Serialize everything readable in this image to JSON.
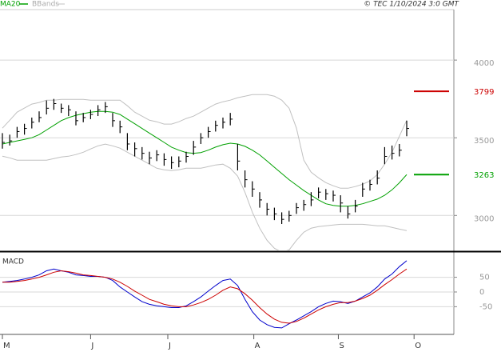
{
  "chart_data": [
    {
      "type": "ohlc",
      "credit": "© TEC 1/10/2024 3:0 GMT",
      "color": "#000000",
      "ylim": [
        2775,
        4325
      ],
      "yticks": [
        3000,
        3500,
        4000
      ],
      "grid": true,
      "high": [
        3530,
        3520,
        3570,
        3590,
        3630,
        3670,
        3740,
        3750,
        3720,
        3710,
        3670,
        3660,
        3680,
        3710,
        3730,
        3660,
        3610,
        3530,
        3470,
        3440,
        3410,
        3420,
        3400,
        3380,
        3380,
        3410,
        3480,
        3530,
        3570,
        3610,
        3630,
        3660,
        3460,
        3290,
        3220,
        3150,
        3080,
        3050,
        3020,
        3030,
        3080,
        3100,
        3150,
        3180,
        3170,
        3160,
        3130,
        3060,
        3100,
        3210,
        3230,
        3290,
        3440,
        3450,
        3460,
        3610
      ],
      "low": [
        3430,
        3450,
        3500,
        3520,
        3560,
        3600,
        3650,
        3680,
        3660,
        3640,
        3580,
        3600,
        3620,
        3640,
        3660,
        3570,
        3530,
        3420,
        3380,
        3360,
        3330,
        3350,
        3320,
        3300,
        3310,
        3340,
        3390,
        3460,
        3500,
        3540,
        3560,
        3580,
        3290,
        3180,
        3120,
        3050,
        3000,
        2970,
        2945,
        2960,
        3010,
        3030,
        3060,
        3110,
        3100,
        3090,
        3020,
        2980,
        3020,
        3120,
        3160,
        3200,
        3330,
        3360,
        3380,
        3510
      ],
      "close": [
        3470,
        3480,
        3540,
        3560,
        3600,
        3630,
        3690,
        3720,
        3690,
        3680,
        3610,
        3630,
        3650,
        3680,
        3700,
        3610,
        3570,
        3460,
        3430,
        3400,
        3370,
        3390,
        3360,
        3340,
        3350,
        3380,
        3440,
        3500,
        3540,
        3580,
        3600,
        3620,
        3350,
        3230,
        3170,
        3100,
        3040,
        3010,
        2975,
        3000,
        3050,
        3070,
        3100,
        3150,
        3140,
        3130,
        3080,
        3010,
        3060,
        3170,
        3200,
        3240,
        3380,
        3400,
        3420,
        3560
      ],
      "ma": {
        "name": "MA20",
        "color": "#00a000",
        "values": [
          3460,
          3470,
          3480,
          3490,
          3500,
          3520,
          3550,
          3580,
          3610,
          3630,
          3645,
          3655,
          3665,
          3670,
          3670,
          3665,
          3650,
          3620,
          3590,
          3560,
          3530,
          3500,
          3470,
          3440,
          3420,
          3405,
          3400,
          3405,
          3420,
          3440,
          3455,
          3465,
          3460,
          3445,
          3420,
          3390,
          3350,
          3310,
          3270,
          3230,
          3195,
          3160,
          3130,
          3100,
          3075,
          3065,
          3060,
          3060,
          3065,
          3075,
          3090,
          3105,
          3130,
          3165,
          3210,
          3263
        ]
      },
      "bands": {
        "name": "BBands",
        "color": "#c0c0c0",
        "upper": [
          3562,
          3613,
          3665,
          3691,
          3717,
          3727,
          3742,
          3742,
          3747,
          3747,
          3747,
          3747,
          3742,
          3742,
          3742,
          3742,
          3742,
          3706,
          3665,
          3639,
          3613,
          3603,
          3588,
          3588,
          3603,
          3624,
          3639,
          3665,
          3691,
          3717,
          3732,
          3742,
          3758,
          3768,
          3778,
          3778,
          3778,
          3768,
          3742,
          3691,
          3562,
          3356,
          3278,
          3242,
          3211,
          3191,
          3175,
          3175,
          3186,
          3201,
          3222,
          3263,
          3330,
          3407,
          3510,
          3613
        ],
        "lower": [
          3381,
          3371,
          3356,
          3356,
          3356,
          3356,
          3356,
          3366,
          3376,
          3381,
          3392,
          3407,
          3428,
          3448,
          3459,
          3448,
          3433,
          3407,
          3381,
          3356,
          3330,
          3304,
          3294,
          3289,
          3294,
          3304,
          3304,
          3304,
          3314,
          3325,
          3330,
          3304,
          3253,
          3149,
          3021,
          2918,
          2840,
          2789,
          2763,
          2778,
          2840,
          2892,
          2918,
          2928,
          2933,
          2938,
          2943,
          2943,
          2943,
          2943,
          2938,
          2933,
          2933,
          2923,
          2912,
          2902
        ]
      },
      "annotations": [
        {
          "value": 3799,
          "color": "#cc0000"
        },
        {
          "value": 3263,
          "color": "#00a000"
        }
      ]
    },
    {
      "type": "line",
      "title": "MACD",
      "ylim": [
        -144,
        133
      ],
      "yticks": [
        50,
        0,
        -50
      ],
      "grid": true,
      "xticks": [
        {
          "value": 0,
          "label": "M"
        },
        {
          "value": 12,
          "label": "J"
        },
        {
          "value": 22.5,
          "label": "J"
        },
        {
          "value": 34.2,
          "label": "A"
        },
        {
          "value": 45.7,
          "label": "S"
        },
        {
          "value": 56,
          "label": "O"
        }
      ],
      "series": [
        {
          "color": "#0000cc",
          "values": [
            33,
            36,
            39,
            44,
            50,
            58,
            72,
            78,
            72,
            67,
            58,
            56,
            53,
            53,
            50,
            39,
            17,
            0,
            -17,
            -33,
            -42,
            -47,
            -50,
            -53,
            -53,
            -47,
            -33,
            -17,
            3,
            22,
            39,
            44,
            22,
            -25,
            -67,
            -95,
            -111,
            -120,
            -122,
            -108,
            -95,
            -81,
            -67,
            -50,
            -39,
            -31,
            -33,
            -39,
            -31,
            -17,
            -3,
            17,
            44,
            61,
            86,
            106
          ]
        },
        {
          "color": "#cc0000",
          "values": [
            33,
            33,
            36,
            39,
            44,
            50,
            58,
            67,
            72,
            69,
            64,
            58,
            56,
            53,
            50,
            44,
            33,
            19,
            3,
            -11,
            -25,
            -33,
            -42,
            -47,
            -50,
            -50,
            -44,
            -36,
            -25,
            -11,
            6,
            17,
            11,
            -6,
            -28,
            -53,
            -75,
            -92,
            -103,
            -106,
            -100,
            -89,
            -75,
            -61,
            -50,
            -42,
            -36,
            -36,
            -31,
            -22,
            -11,
            6,
            25,
            42,
            61,
            78
          ]
        }
      ]
    }
  ]
}
